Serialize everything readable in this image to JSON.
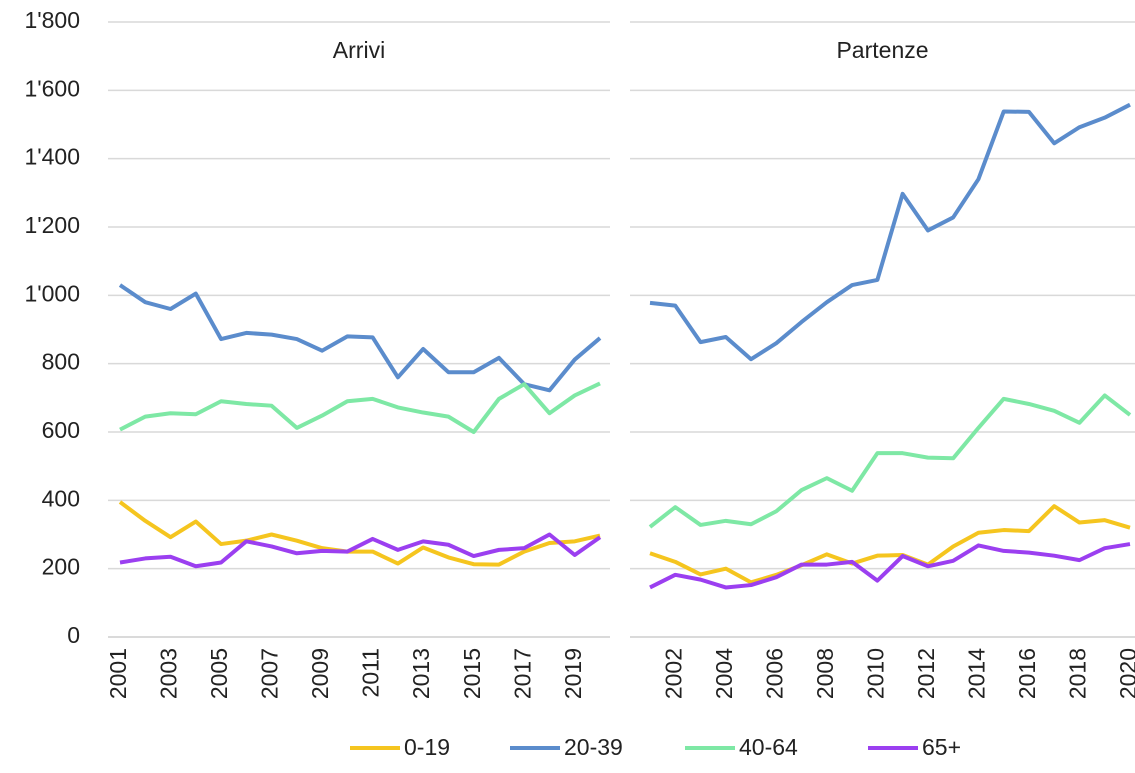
{
  "chart_data": [
    {
      "type": "line",
      "title": "Arrivi",
      "categories": [
        "2001",
        null,
        "2003",
        null,
        "2005",
        null,
        "2007",
        null,
        "2009",
        null,
        "2011",
        null,
        "2013",
        null,
        "2015",
        null,
        "2017",
        null,
        "2019",
        null
      ],
      "ylim": [
        0,
        1800
      ],
      "yticks": [
        0,
        200,
        400,
        600,
        800,
        {
          "value": 1000,
          "label": "1'000"
        },
        {
          "value": 1200,
          "label": "1'200"
        },
        {
          "value": 1400,
          "label": "1'400"
        },
        {
          "value": 1600,
          "label": "1'600"
        },
        {
          "value": 1800,
          "label": "1'800"
        }
      ],
      "grid": true,
      "series": [
        {
          "name": "0-19",
          "color": "#f5c51f",
          "values": [
            395,
            340,
            292,
            338,
            272,
            282,
            300,
            282,
            260,
            250,
            250,
            215,
            262,
            233,
            213,
            212,
            250,
            275,
            280,
            297
          ]
        },
        {
          "name": "20-39",
          "color": "#5b8ccc",
          "values": [
            1030,
            980,
            960,
            1005,
            872,
            890,
            885,
            872,
            838,
            880,
            877,
            760,
            843,
            775,
            775,
            817,
            740,
            722,
            812,
            875
          ]
        },
        {
          "name": "40-64",
          "color": "#7ee8a5",
          "values": [
            607,
            645,
            655,
            652,
            690,
            682,
            677,
            612,
            648,
            690,
            697,
            672,
            657,
            645,
            600,
            697,
            740,
            655,
            707,
            742
          ]
        },
        {
          "name": "65+",
          "color": "#9b3ff0",
          "values": [
            218,
            230,
            235,
            207,
            218,
            280,
            265,
            245,
            252,
            250,
            287,
            255,
            280,
            270,
            237,
            255,
            260,
            300,
            240,
            292
          ]
        }
      ]
    },
    {
      "type": "line",
      "title": "Partenze",
      "categories": [
        null,
        "2002",
        null,
        "2004",
        null,
        "2006",
        null,
        "2008",
        null,
        "2010",
        null,
        "2012",
        null,
        "2014",
        null,
        "2016",
        null,
        "2018",
        null,
        "2020"
      ],
      "ylim": [
        0,
        1800
      ],
      "grid": true,
      "series": [
        {
          "name": "0-19",
          "color": "#f5c51f",
          "values": [
            245,
            220,
            183,
            200,
            160,
            182,
            210,
            242,
            215,
            238,
            240,
            212,
            265,
            305,
            313,
            310,
            383,
            335,
            342,
            320
          ]
        },
        {
          "name": "20-39",
          "color": "#5b8ccc",
          "values": [
            978,
            970,
            863,
            878,
            813,
            860,
            922,
            980,
            1030,
            1045,
            1297,
            1190,
            1228,
            1340,
            1538,
            1537,
            1445,
            1492,
            1520,
            1558
          ]
        },
        {
          "name": "40-64",
          "color": "#7ee8a5",
          "values": [
            322,
            380,
            328,
            340,
            330,
            368,
            430,
            465,
            428,
            538,
            538,
            525,
            523,
            612,
            697,
            682,
            662,
            627,
            707,
            650
          ]
        },
        {
          "name": "65+",
          "color": "#9b3ff0",
          "values": [
            145,
            182,
            168,
            145,
            152,
            175,
            212,
            212,
            220,
            165,
            237,
            207,
            223,
            268,
            252,
            247,
            238,
            225,
            260,
            272
          ]
        }
      ]
    }
  ]
}
